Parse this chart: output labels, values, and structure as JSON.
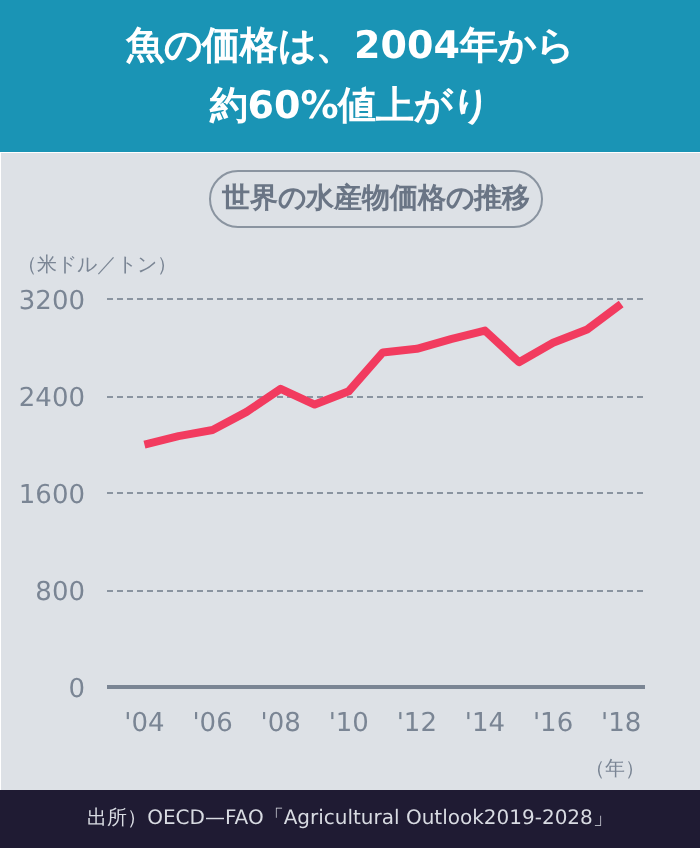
{
  "chart_data": {
    "type": "line",
    "title": "魚の価格は、2004年から約60%値上がり",
    "subtitle": "世界の水産物価格の推移",
    "ylabel": "（米ドル／トン）",
    "xlabel": "（年）",
    "x": [
      2004,
      2005,
      2006,
      2007,
      2008,
      2009,
      2010,
      2011,
      2012,
      2013,
      2014,
      2015,
      2016,
      2017,
      2018
    ],
    "series": [
      {
        "color": "#f23b5f",
        "values": [
          2000,
          2070,
          2120,
          2270,
          2460,
          2330,
          2440,
          2760,
          2790,
          2870,
          2940,
          2680,
          2840,
          2950,
          3160
        ]
      }
    ],
    "xlim": [
      2002.9,
      2018.7
    ],
    "xticks": [
      {
        "value": 2004,
        "label": "'04"
      },
      {
        "value": 2006,
        "label": "'06"
      },
      {
        "value": 2008,
        "label": "'08"
      },
      {
        "value": 2010,
        "label": "'10"
      },
      {
        "value": 2012,
        "label": "'12"
      },
      {
        "value": 2014,
        "label": "'14"
      },
      {
        "value": 2016,
        "label": "'16"
      },
      {
        "value": 2018,
        "label": "'18"
      }
    ],
    "ylim": [
      0,
      3300
    ],
    "yticks": [
      0,
      800,
      1600,
      2400,
      3200
    ],
    "grid": "y",
    "annotations": [
      "出所）OECD—FAO「Agricultural Outlook2019-2028」"
    ]
  }
}
